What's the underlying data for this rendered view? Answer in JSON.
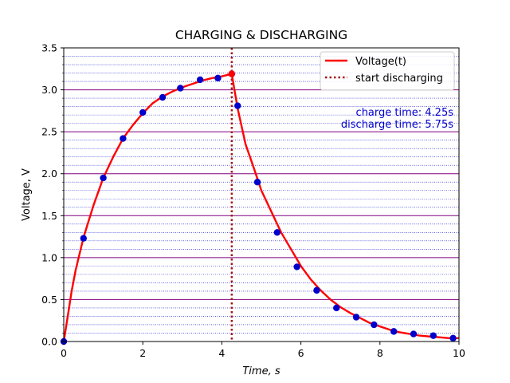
{
  "chart_data": {
    "type": "line",
    "title": "CHARGING & DISCHARGING",
    "xlabel": "Time,  s",
    "ylabel": "Voltage, V",
    "xlim": [
      0,
      10
    ],
    "ylim": [
      0,
      3.5
    ],
    "x_ticks": [
      "0",
      "2",
      "4",
      "6",
      "8",
      "10"
    ],
    "y_ticks": [
      "0.0",
      "0.5",
      "1.0",
      "1.5",
      "2.0",
      "2.5",
      "3.0",
      "3.5"
    ],
    "grid": {
      "major": true,
      "minor": true,
      "minor_style": "dotted"
    },
    "legend": {
      "placement": "top-right",
      "entries": [
        {
          "label": "Voltage(t)",
          "style": "solid",
          "color": "#ff0000"
        },
        {
          "label": "start discharging",
          "style": "dotted",
          "color": "#a31515"
        }
      ]
    },
    "annotations": [
      {
        "text": "charge time:  4.25s",
        "color": "#0000cc"
      },
      {
        "text": "discharge time:  5.75s",
        "color": "#0000cc"
      }
    ],
    "discharge_start": 4.25,
    "series": [
      {
        "name": "Voltage(t)",
        "kind": "line",
        "color": "#ff0000",
        "x": [
          0,
          0.1,
          0.2,
          0.3,
          0.5,
          0.75,
          1.0,
          1.25,
          1.5,
          1.75,
          2.0,
          2.25,
          2.5,
          2.75,
          3.0,
          3.25,
          3.5,
          3.75,
          4.0,
          4.25,
          4.4,
          4.6,
          4.8,
          5.0,
          5.25,
          5.5,
          5.75,
          6.0,
          6.25,
          6.5,
          6.75,
          7.0,
          7.25,
          7.5,
          7.75,
          8.0,
          8.25,
          8.5,
          8.75,
          9.0,
          9.25,
          9.5,
          9.75,
          10.0
        ],
        "y": [
          0,
          0.3,
          0.6,
          0.85,
          1.24,
          1.62,
          1.95,
          2.2,
          2.42,
          2.58,
          2.72,
          2.84,
          2.92,
          2.98,
          3.03,
          3.07,
          3.11,
          3.14,
          3.16,
          3.19,
          2.78,
          2.35,
          2.08,
          1.8,
          1.55,
          1.3,
          1.1,
          0.9,
          0.74,
          0.61,
          0.5,
          0.41,
          0.34,
          0.28,
          0.22,
          0.18,
          0.14,
          0.11,
          0.09,
          0.07,
          0.06,
          0.05,
          0.04,
          0.04
        ]
      },
      {
        "name": "",
        "kind": "scatter",
        "color": "#0000cc",
        "x": [
          0,
          0.5,
          1.0,
          1.5,
          2.0,
          2.5,
          2.95,
          3.45,
          3.9,
          4.25,
          4.4,
          4.9,
          5.4,
          5.9,
          6.4,
          6.9,
          7.4,
          7.85,
          8.35,
          8.85,
          9.35,
          9.85
        ],
        "y": [
          0,
          1.23,
          1.95,
          2.42,
          2.73,
          2.91,
          3.02,
          3.12,
          3.14,
          3.19,
          2.81,
          1.9,
          1.3,
          0.89,
          0.61,
          0.4,
          0.29,
          0.2,
          0.12,
          0.09,
          0.07,
          0.04
        ]
      }
    ]
  }
}
